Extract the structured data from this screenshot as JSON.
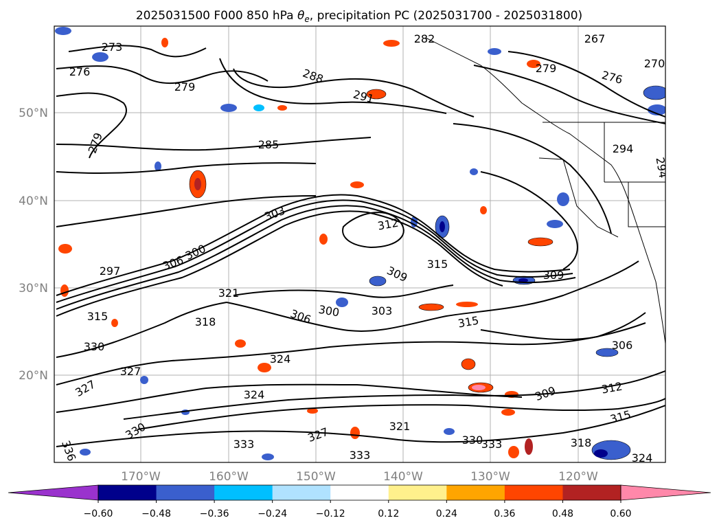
{
  "title": "2025031500 F000 850 hPa θe, precipitation PC (2025031700 - 2025031800)",
  "title_parts": {
    "prefix": "2025031500 F000 850 hPa ",
    "theta": "θ",
    "sub": "e",
    "suffix": ", precipitation PC (2025031700 - 2025031800)"
  },
  "map": {
    "lat_labels": [
      "50°N",
      "40°N",
      "30°N",
      "20°N"
    ],
    "lon_labels": [
      "170°W",
      "160°W",
      "150°W",
      "140°W",
      "130°W",
      "120°W"
    ],
    "contour_labels": [
      "273",
      "276",
      "279",
      "279",
      "267",
      "270",
      "276",
      "279",
      "282",
      "288",
      "291",
      "285",
      "294",
      "294",
      "303",
      "312",
      "297",
      "306",
      "300",
      "315",
      "309",
      "309",
      "315",
      "321",
      "300",
      "303",
      "306",
      "318",
      "315",
      "306",
      "330",
      "324",
      "327",
      "327",
      "324",
      "312",
      "309",
      "315",
      "330",
      "333",
      "321",
      "327",
      "333",
      "336",
      "333",
      "318",
      "324",
      "330"
    ]
  },
  "colorbar": {
    "colors": [
      "#9a32cd",
      "#00008b",
      "#3a5fcd",
      "#00bfff",
      "#b0e2ff",
      "#ffffff",
      "#fff08c",
      "#ffa500",
      "#ff4500",
      "#b22222",
      "#ff88aa"
    ],
    "under_color": "#9a32cd",
    "over_color": "#ff88aa",
    "ticks": [
      "−0.60",
      "−0.48",
      "−0.36",
      "−0.24",
      "−0.12",
      "0.12",
      "0.24",
      "0.36",
      "0.48",
      "0.60"
    ]
  }
}
